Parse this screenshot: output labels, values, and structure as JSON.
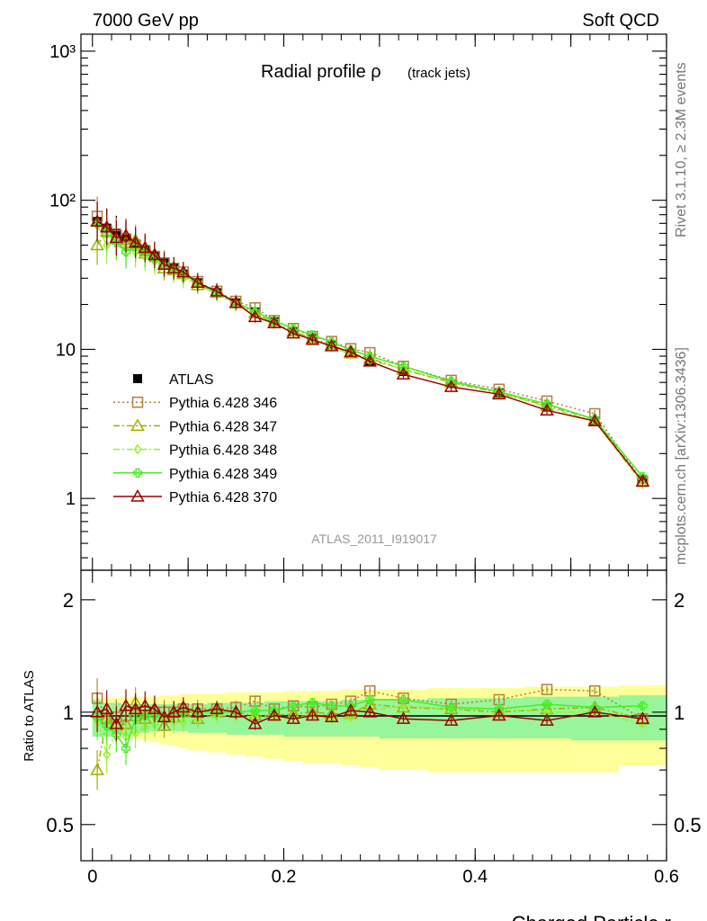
{
  "header": {
    "left": "7000 GeV pp",
    "right": "Soft QCD",
    "title_main": "Radial profile ρ",
    "title_sub": "(track jets)",
    "reference": "ATLAS_2011_I919017"
  },
  "side_labels": {
    "top": "Rivet 3.1.10, ≥ 2.3M events",
    "bottom": "mcplots.cern.ch [arXiv:1306.3436]"
  },
  "chart_data": [
    {
      "type": "scatter",
      "title": "Radial profile ρ (track jets)",
      "xlabel": "",
      "ylabel": "",
      "yscale": "log",
      "xlim": [
        -0.012,
        0.6
      ],
      "ylim": [
        0.33,
        1300
      ],
      "x": [
        0.005,
        0.015,
        0.025,
        0.035,
        0.045,
        0.055,
        0.065,
        0.075,
        0.085,
        0.095,
        0.11,
        0.13,
        0.15,
        0.17,
        0.19,
        0.21,
        0.23,
        0.25,
        0.27,
        0.29,
        0.325,
        0.375,
        0.425,
        0.475,
        0.525,
        0.575
      ],
      "yticks": [
        "10³",
        "10²",
        "10",
        "1"
      ],
      "legend_position": "center-left",
      "series": [
        {
          "name": "ATLAS",
          "color": "#000000",
          "marker": "filled-square",
          "line": "none",
          "values": [
            72,
            65,
            60,
            56,
            51,
            46,
            42,
            38,
            35,
            32,
            28,
            24,
            20.5,
            17.8,
            15.3,
            13.3,
            11.8,
            10.8,
            9.5,
            8.3,
            7.1,
            5.9,
            5.1,
            4.1,
            3.3,
            1.35
          ]
        },
        {
          "name": "Pythia 6.428 346",
          "color": "#b08040",
          "marker": "open-square",
          "line": "dotted",
          "values": [
            78,
            62,
            58,
            55,
            50,
            46,
            42,
            38,
            35,
            33,
            28.5,
            24.5,
            21,
            19,
            15.6,
            13.8,
            12.2,
            11.3,
            10.1,
            9.5,
            7.7,
            6.2,
            5.4,
            4.5,
            3.7,
            1.3
          ]
        },
        {
          "name": "Pythia 6.428 347",
          "color": "#a0b000",
          "marker": "open-triangle",
          "line": "dashdot",
          "values": [
            50,
            62,
            55,
            52,
            54,
            44,
            43,
            35,
            34,
            32,
            27,
            24,
            20.5,
            17.5,
            15,
            13.2,
            11.8,
            10.7,
            9.4,
            8.7,
            7.3,
            6,
            5.1,
            4.2,
            3.4,
            1.3
          ]
        },
        {
          "name": "Pythia 6.428 348",
          "color": "#99ee33",
          "marker": "open-diamond",
          "line": "dashdot",
          "values": [
            68,
            50,
            54,
            48,
            45,
            42,
            39,
            37,
            33,
            30,
            27,
            23.5,
            20,
            17.3,
            14.8,
            12.9,
            11.6,
            10.4,
            9.2,
            8.4,
            7.4,
            6,
            5.2,
            4.1,
            3.3,
            1.25
          ]
        },
        {
          "name": "Pythia 6.428 349",
          "color": "#44ee22",
          "marker": "open-cross",
          "line": "solid",
          "values": [
            70,
            60,
            52,
            45,
            49,
            45,
            41,
            37,
            35,
            32,
            28,
            24,
            20.5,
            18,
            15.5,
            13.8,
            12.5,
            11.2,
            9.9,
            9,
            7.7,
            6.1,
            5.2,
            4.3,
            3.4,
            1.4
          ]
        },
        {
          "name": "Pythia 6.428 370",
          "color": "#990000",
          "marker": "open-triangle",
          "line": "solid",
          "values": [
            72,
            66,
            56,
            58,
            52,
            48,
            43,
            37,
            35,
            33,
            28,
            24.5,
            20.5,
            16.5,
            15,
            12.8,
            11.6,
            10.5,
            9.6,
            8.3,
            6.8,
            5.6,
            5,
            3.9,
            3.3,
            1.3
          ]
        }
      ]
    },
    {
      "type": "scatter",
      "xlabel": "Charged Particle r",
      "ylabel": "Ratio to ATLAS",
      "yscale": "log",
      "xlim": [
        -0.012,
        0.6
      ],
      "ylim": [
        0.4,
        2.4
      ],
      "xticks": [
        0,
        0.2,
        0.4,
        0.6
      ],
      "yticks": [
        0.5,
        1,
        2
      ],
      "bands": {
        "inner_color": "#99f599",
        "outer_color": "#ffff99",
        "inner_lo": [
          0.86,
          0.86,
          0.87,
          0.87,
          0.88,
          0.88,
          0.89,
          0.89,
          0.89,
          0.89,
          0.88,
          0.88,
          0.87,
          0.87,
          0.87,
          0.86,
          0.86,
          0.86,
          0.86,
          0.86,
          0.85,
          0.85,
          0.85,
          0.85,
          0.84,
          0.84
        ],
        "inner_hi": [
          1.08,
          1.06,
          1.06,
          1.05,
          1.05,
          1.05,
          1.05,
          1.05,
          1.05,
          1.05,
          1.05,
          1.06,
          1.06,
          1.06,
          1.07,
          1.07,
          1.07,
          1.07,
          1.08,
          1.08,
          1.08,
          1.09,
          1.09,
          1.1,
          1.1,
          1.11
        ],
        "outer_lo": [
          0.86,
          0.86,
          0.86,
          0.86,
          0.85,
          0.84,
          0.83,
          0.82,
          0.81,
          0.8,
          0.79,
          0.78,
          0.77,
          0.76,
          0.75,
          0.74,
          0.73,
          0.73,
          0.72,
          0.71,
          0.7,
          0.69,
          0.69,
          0.69,
          0.69,
          0.72
        ],
        "outer_hi": [
          1.09,
          1.09,
          1.09,
          1.1,
          1.1,
          1.1,
          1.1,
          1.11,
          1.11,
          1.12,
          1.12,
          1.12,
          1.13,
          1.13,
          1.13,
          1.14,
          1.14,
          1.14,
          1.15,
          1.15,
          1.15,
          1.16,
          1.16,
          1.17,
          1.17,
          1.18
        ]
      },
      "series": [
        {
          "name": "Pythia 6.428 346",
          "color": "#b08040",
          "marker": "open-square",
          "line": "dotted",
          "values": [
            1.09,
            0.96,
            0.97,
            0.98,
            0.98,
            1,
            1,
            1,
            1,
            1.02,
            1.02,
            1.02,
            1.03,
            1.07,
            1.02,
            1.04,
            1.03,
            1.05,
            1.07,
            1.14,
            1.09,
            1.05,
            1.08,
            1.15,
            1.14,
            0.96
          ]
        },
        {
          "name": "Pythia 6.428 347",
          "color": "#a0b000",
          "marker": "open-triangle",
          "line": "dashdot",
          "values": [
            0.7,
            0.96,
            0.92,
            0.93,
            1.06,
            0.96,
            1.02,
            0.92,
            0.97,
            1,
            0.96,
            1,
            1,
            0.98,
            0.98,
            0.99,
            1,
            0.99,
            0.99,
            1.05,
            1.03,
            1.02,
            1,
            1.02,
            1.03,
            0.96
          ]
        },
        {
          "name": "Pythia 6.428 348",
          "color": "#99ee33",
          "marker": "open-diamond",
          "line": "dashdot",
          "values": [
            0.95,
            0.77,
            0.9,
            0.86,
            0.88,
            0.91,
            0.93,
            0.97,
            0.94,
            0.94,
            0.96,
            0.98,
            0.98,
            0.97,
            0.97,
            0.97,
            0.98,
            0.96,
            0.97,
            1.01,
            1.04,
            1.02,
            1.02,
            1,
            1,
            0.93
          ]
        },
        {
          "name": "Pythia 6.428 349",
          "color": "#44ee22",
          "marker": "open-cross",
          "line": "solid",
          "values": [
            0.97,
            0.92,
            0.87,
            0.8,
            0.96,
            0.98,
            0.98,
            0.97,
            1,
            1,
            1,
            1,
            1,
            1.01,
            1.01,
            1.04,
            1.06,
            1.04,
            1.04,
            1.08,
            1.08,
            1.03,
            1.02,
            1.05,
            1.03,
            1.04
          ]
        },
        {
          "name": "Pythia 6.428 370",
          "color": "#990000",
          "marker": "open-triangle",
          "line": "solid",
          "values": [
            1,
            1.02,
            0.93,
            1.04,
            1.02,
            1.04,
            1.02,
            0.97,
            1,
            1.03,
            1,
            1.02,
            1,
            0.93,
            0.98,
            0.96,
            0.98,
            0.97,
            1.01,
            1,
            0.96,
            0.95,
            0.98,
            0.95,
            1,
            0.96
          ]
        }
      ]
    }
  ]
}
